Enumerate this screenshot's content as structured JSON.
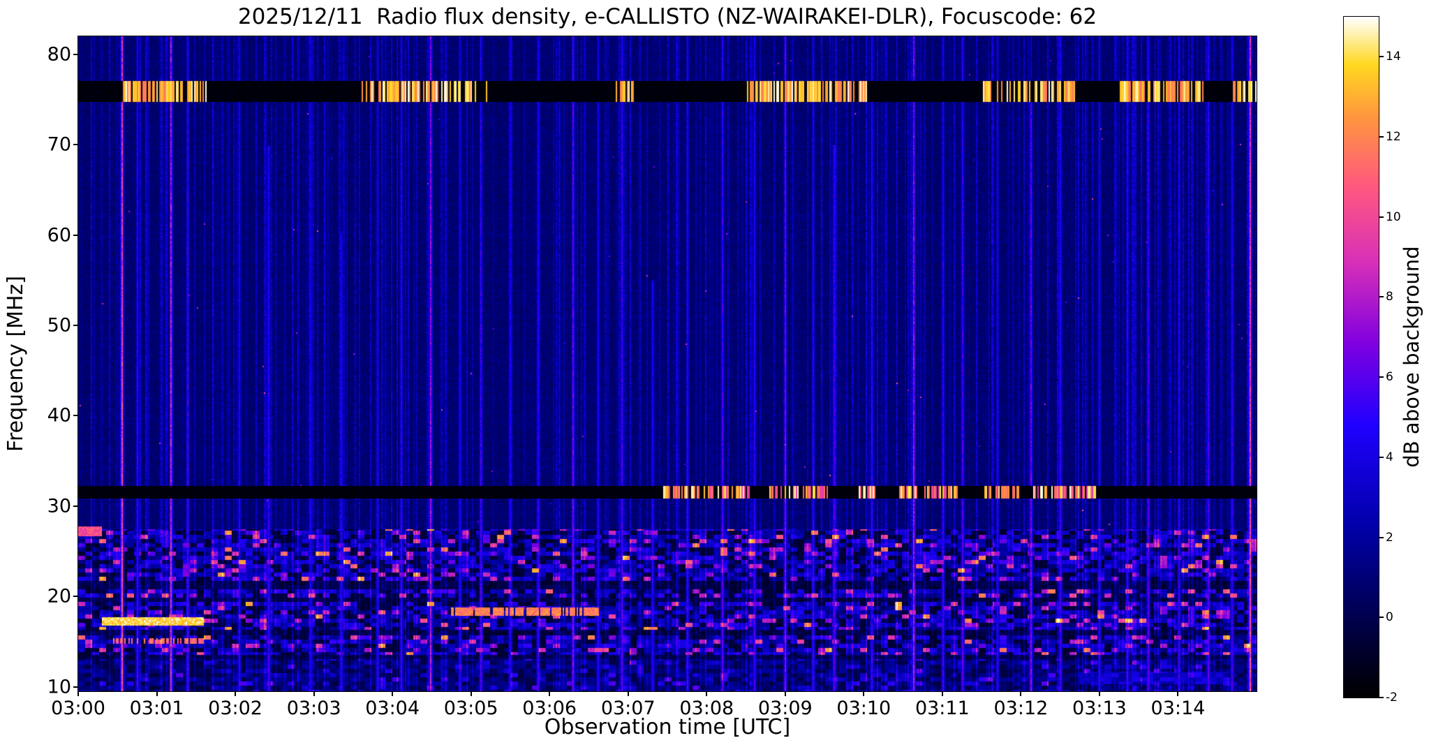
{
  "figure": {
    "title": "2025/12/11  Radio flux density, e-CALLISTO (NZ-WAIRAKEI-DLR), Focuscode: 62",
    "xlabel": "Observation time [UTC]",
    "ylabel": "Frequency [MHz]",
    "colorbar_label": "dB above background",
    "background": "#ffffff"
  },
  "chart_data": {
    "type": "heatmap",
    "title": "2025/12/11  Radio flux density, e-CALLISTO (NZ-WAIRAKEI-DLR), Focuscode: 62",
    "xlabel": "Observation time [UTC]",
    "ylabel": "Frequency [MHz]",
    "colorbar_label": "dB above background",
    "x_range_minutes": [
      0,
      15
    ],
    "x_ticks": [
      {
        "t": 0,
        "label": "03:00"
      },
      {
        "t": 1,
        "label": "03:01"
      },
      {
        "t": 2,
        "label": "03:02"
      },
      {
        "t": 3,
        "label": "03:03"
      },
      {
        "t": 4,
        "label": "03:04"
      },
      {
        "t": 5,
        "label": "03:05"
      },
      {
        "t": 6,
        "label": "03:06"
      },
      {
        "t": 7,
        "label": "03:07"
      },
      {
        "t": 8,
        "label": "03:08"
      },
      {
        "t": 9,
        "label": "03:09"
      },
      {
        "t": 10,
        "label": "03:10"
      },
      {
        "t": 11,
        "label": "03:11"
      },
      {
        "t": 12,
        "label": "03:12"
      },
      {
        "t": 13,
        "label": "03:13"
      },
      {
        "t": 14,
        "label": "03:14"
      }
    ],
    "y_range_mhz": [
      9.5,
      82
    ],
    "y_ticks": [
      {
        "f": 10,
        "label": "10"
      },
      {
        "f": 20,
        "label": "20"
      },
      {
        "f": 30,
        "label": "30"
      },
      {
        "f": 40,
        "label": "40"
      },
      {
        "f": 50,
        "label": "50"
      },
      {
        "f": 60,
        "label": "60"
      },
      {
        "f": 70,
        "label": "70"
      },
      {
        "f": 80,
        "label": "80"
      }
    ],
    "c_range_db": [
      -2,
      15
    ],
    "c_ticks": [
      {
        "v": -2,
        "label": "-2"
      },
      {
        "v": 0,
        "label": "0"
      },
      {
        "v": 2,
        "label": "2"
      },
      {
        "v": 4,
        "label": "4"
      },
      {
        "v": 6,
        "label": "6"
      },
      {
        "v": 8,
        "label": "8"
      },
      {
        "v": 10,
        "label": "10"
      },
      {
        "v": 12,
        "label": "12"
      },
      {
        "v": 14,
        "label": "14"
      }
    ],
    "colormap": [
      [
        0.0,
        "#000000"
      ],
      [
        0.12,
        "#000050"
      ],
      [
        0.25,
        "#0000a8"
      ],
      [
        0.4,
        "#2000ff"
      ],
      [
        0.52,
        "#8000e0"
      ],
      [
        0.64,
        "#d830b8"
      ],
      [
        0.75,
        "#ff5880"
      ],
      [
        0.85,
        "#ff9440"
      ],
      [
        0.93,
        "#ffd820"
      ],
      [
        1.0,
        "#ffffff"
      ]
    ],
    "seed": 7,
    "features": {
      "noise_region_top_mhz": 27.4,
      "low_cut_mhz": 13.2,
      "minor_streak_density": 0.3,
      "bands": [
        {
          "f_low": 74.7,
          "f_high": 77.0,
          "db": -2,
          "on_prob": 0.66,
          "burst_db": [
            11.5,
            15
          ],
          "burst_intervals": [
            [
              0.55,
              1.65
            ],
            [
              3.55,
              5.2
            ],
            [
              6.85,
              7.1
            ],
            [
              8.5,
              10.05
            ],
            [
              11.5,
              12.7
            ],
            [
              13.25,
              14.35
            ],
            [
              14.7,
              15.0
            ]
          ]
        },
        {
          "f_low": 30.9,
          "f_high": 32.3,
          "db": -2,
          "on_prob": 0.62,
          "burst_db": [
            9,
            15
          ],
          "burst_intervals": [
            [
              7.45,
              8.55
            ],
            [
              8.8,
              9.55
            ],
            [
              9.9,
              10.15
            ],
            [
              10.45,
              11.2
            ],
            [
              11.5,
              12.0
            ],
            [
              12.15,
              12.95
            ]
          ]
        }
      ],
      "dark_rows": [
        [
          20.8,
          21.7
        ],
        [
          19.35,
          19.8
        ],
        [
          15.75,
          16.3
        ],
        [
          13.0,
          13.5
        ]
      ],
      "lines": [
        {
          "f": 17.2,
          "half_width": 0.45,
          "t0": 0.3,
          "t1": 1.6,
          "db": 13.5,
          "dash_prob": 1.0
        },
        {
          "f": 15.1,
          "half_width": 0.35,
          "t0": 0.45,
          "t1": 1.6,
          "db": 11.0,
          "dash_prob": 0.6
        },
        {
          "f": 18.3,
          "half_width": 0.4,
          "t0": 4.75,
          "t1": 6.65,
          "db": 11.5,
          "dash_prob": 0.85
        },
        {
          "f": 27.2,
          "half_width": 0.5,
          "t0": 0.0,
          "t1": 0.3,
          "db": 10.0,
          "dash_prob": 1.0
        }
      ],
      "major_streaks": [
        [
          0.55,
          9.5,
          82
        ],
        [
          0.75,
          4.5,
          82
        ],
        [
          1.18,
          8,
          82
        ],
        [
          1.38,
          5,
          82
        ],
        [
          2.05,
          4,
          82
        ],
        [
          2.42,
          4.5,
          70
        ],
        [
          2.95,
          3.8,
          82
        ],
        [
          3.35,
          4.2,
          60
        ],
        [
          3.8,
          4,
          82
        ],
        [
          4.1,
          4.5,
          82
        ],
        [
          4.48,
          7,
          82
        ],
        [
          4.85,
          4,
          82
        ],
        [
          5.12,
          5,
          82
        ],
        [
          5.5,
          4,
          82
        ],
        [
          5.85,
          4.5,
          82
        ],
        [
          6.3,
          6,
          82
        ],
        [
          6.62,
          4,
          82
        ],
        [
          6.92,
          5,
          82
        ],
        [
          7.3,
          4,
          55
        ],
        [
          7.75,
          4.5,
          82
        ],
        [
          8.2,
          5,
          82
        ],
        [
          8.6,
          4.5,
          82
        ],
        [
          9.0,
          6,
          82
        ],
        [
          9.35,
          4.5,
          82
        ],
        [
          9.62,
          5,
          70
        ],
        [
          10.1,
          4.5,
          82
        ],
        [
          10.62,
          7,
          82
        ],
        [
          11.0,
          4.5,
          82
        ],
        [
          11.25,
          5,
          82
        ],
        [
          11.7,
          4,
          82
        ],
        [
          12.12,
          6,
          75
        ],
        [
          12.5,
          4.5,
          82
        ],
        [
          13.0,
          4.2,
          82
        ],
        [
          13.35,
          4.5,
          82
        ],
        [
          13.62,
          5,
          82
        ],
        [
          14.0,
          4.5,
          82
        ],
        [
          14.38,
          5,
          82
        ],
        [
          14.68,
          4.5,
          82
        ],
        [
          14.92,
          9.5,
          82
        ]
      ],
      "patches": [
        {
          "t0": 12.75,
          "t1": 14.65,
          "f_low": 10.2,
          "f_high": 11.6,
          "db": 3.2
        }
      ]
    }
  }
}
